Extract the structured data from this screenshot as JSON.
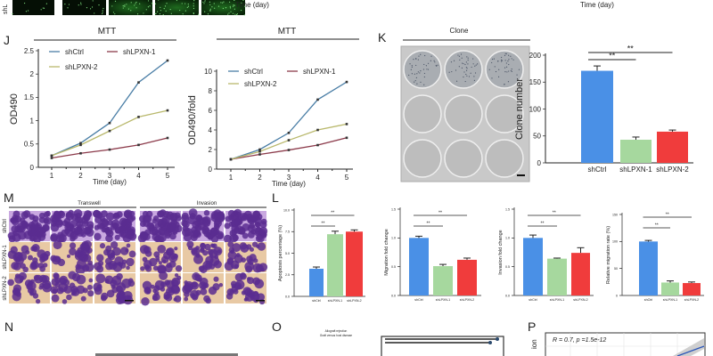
{
  "top_strip": {
    "row_label": "shL",
    "xlabels": [
      "Time (day)",
      "Time (day)"
    ]
  },
  "panels": {
    "J": "J",
    "K": "K",
    "M": "M",
    "L": "L",
    "N": "N",
    "O": "O",
    "P": "P"
  },
  "mtt_titles": [
    "MTT",
    "MTT"
  ],
  "clone_title": "Clone",
  "transwell": {
    "titles": [
      "Transwell",
      "Invasion"
    ],
    "rows": [
      "shCtrl",
      "shLPXN-1",
      "shLPXN-2"
    ]
  },
  "o_panel": {
    "labels": [
      "Allograft rejection",
      "Graft versus host disease"
    ]
  },
  "p_panel": {
    "stat": "R = 0.7, p =1.5e-12",
    "ylabel_fragment": "ion"
  },
  "colors": {
    "shCtrl_line": "#4a7ea6",
    "shLPXN1_line": "#8c3b4b",
    "shLPXN2_line": "#b9b86c",
    "bar_shCtrl": "#4a90e6",
    "bar_shLPXN1": "#a6d89e",
    "bar_shLPXN2": "#f03c3c",
    "transwell_stain": "#5b2d91",
    "transwell_bg": "#e8c9a4"
  },
  "chart_data": [
    {
      "type": "line",
      "xlabel": "Time (day)",
      "ylabel": "OD490",
      "ylim": [
        0,
        2.5
      ],
      "x": [
        1,
        2,
        3,
        4,
        5
      ],
      "xticks": [
        "1",
        "2",
        "3",
        "4",
        "5"
      ],
      "yticks": [
        "0",
        "0.5",
        "1",
        "1.5",
        "2",
        "2.5"
      ],
      "legend": "top-left",
      "series": [
        {
          "name": "shCtrl",
          "values": [
            0.25,
            0.52,
            0.95,
            1.82,
            2.29
          ]
        },
        {
          "name": "shLPXN-1",
          "values": [
            0.2,
            0.3,
            0.38,
            0.48,
            0.63
          ]
        },
        {
          "name": "shLPXN-2",
          "values": [
            0.25,
            0.48,
            0.78,
            1.08,
            1.22
          ]
        }
      ]
    },
    {
      "type": "line",
      "xlabel": "Time (day)",
      "ylabel": "OD490/fold",
      "ylim": [
        0,
        10
      ],
      "x": [
        1,
        2,
        3,
        4,
        5
      ],
      "xticks": [
        "1",
        "2",
        "3",
        "4",
        "5"
      ],
      "yticks": [
        "0",
        "2",
        "4",
        "6",
        "8",
        "10"
      ],
      "legend": "top-left",
      "series": [
        {
          "name": "shCtrl",
          "values": [
            1,
            2.0,
            3.7,
            7.1,
            8.9
          ]
        },
        {
          "name": "shLPXN-1",
          "values": [
            1,
            1.5,
            1.95,
            2.45,
            3.2
          ]
        },
        {
          "name": "shLPXN-2",
          "values": [
            1,
            1.8,
            2.95,
            4.0,
            4.6
          ]
        }
      ]
    },
    {
      "type": "bar",
      "ylabel": "Clone number",
      "ylim": [
        0,
        200
      ],
      "yticks": [
        "0",
        "50",
        "100",
        "150",
        "200"
      ],
      "categories": [
        "shCtrl",
        "shLPXN-1",
        "shLPXN-2"
      ],
      "values": [
        171,
        43,
        58
      ],
      "errors": [
        9,
        5,
        3
      ],
      "significance": [
        {
          "pair": [
            "shCtrl",
            "shLPXN-2"
          ],
          "label": "**"
        },
        {
          "pair": [
            "shCtrl",
            "shLPXN-1"
          ],
          "label": "**"
        }
      ]
    },
    {
      "type": "bar",
      "ylabel": "Apoptosis percentage (%)",
      "ylim": [
        0,
        10
      ],
      "yticks": [
        "0.0",
        "2.5",
        "5.0",
        "7.5",
        "10.0"
      ],
      "categories": [
        "shCtrl",
        "shLPXN-1",
        "shLPXN-2"
      ],
      "values": [
        3.2,
        7.2,
        7.5
      ],
      "errors": [
        0.2,
        0.35,
        0.2
      ],
      "significance": [
        {
          "pair": [
            "shCtrl",
            "shLPXN-2"
          ],
          "label": "**"
        },
        {
          "pair": [
            "shCtrl",
            "shLPXN-1"
          ],
          "label": "**"
        }
      ]
    },
    {
      "type": "bar",
      "ylabel": "Migration fold change",
      "ylim": [
        0,
        1.5
      ],
      "yticks": [
        "0.0",
        "0.5",
        "1.0",
        "1.5"
      ],
      "categories": [
        "shCtrl",
        "shLPXN-1",
        "shLPXN-2"
      ],
      "values": [
        1.0,
        0.51,
        0.62
      ],
      "errors": [
        0.03,
        0.03,
        0.03
      ],
      "significance": [
        {
          "pair": [
            "shCtrl",
            "shLPXN-2"
          ],
          "label": "**"
        },
        {
          "pair": [
            "shCtrl",
            "shLPXN-1"
          ],
          "label": "**"
        }
      ]
    },
    {
      "type": "bar",
      "ylabel": "Invasion fold change",
      "ylim": [
        0,
        1.5
      ],
      "yticks": [
        "0.0",
        "0.5",
        "1.0",
        "1.5"
      ],
      "categories": [
        "shCtrl",
        "shLPXN-1",
        "shLPXN-2"
      ],
      "values": [
        1.0,
        0.64,
        0.74
      ],
      "errors": [
        0.05,
        0.01,
        0.09
      ],
      "significance": [
        {
          "pair": [
            "shCtrl",
            "shLPXN-2"
          ],
          "label": "**"
        },
        {
          "pair": [
            "shCtrl",
            "shLPXN-1"
          ],
          "label": "**"
        }
      ]
    },
    {
      "type": "bar",
      "ylabel": "Relative migration rate (%)",
      "ylim": [
        0,
        150
      ],
      "yticks": [
        "0",
        "50",
        "100",
        "150"
      ],
      "categories": [
        "shCtrl",
        "shLPXN-1",
        "shLPXN-2"
      ],
      "values": [
        100,
        24,
        23
      ],
      "errors": [
        2,
        3,
        2
      ],
      "significance": [
        {
          "pair": [
            "shCtrl",
            "shLPXN-2"
          ],
          "label": "**"
        },
        {
          "pair": [
            "shCtrl",
            "shLPXN-1"
          ],
          "label": "**"
        }
      ]
    }
  ]
}
